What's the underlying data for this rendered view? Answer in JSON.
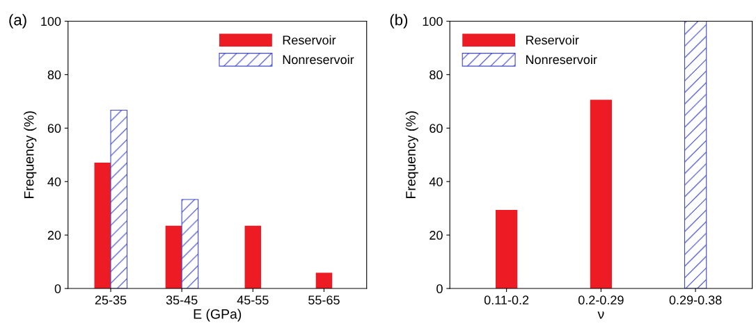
{
  "chart_data": [
    {
      "type": "bar",
      "xlabel": "E (GPa)",
      "ylabel": "Frequency (%)",
      "annotations": [
        "(a)"
      ],
      "categories": [
        "25-35",
        "35-45",
        "45-55",
        "55-65"
      ],
      "series": [
        {
          "name": "Reservoir",
          "color": "#ed1c24",
          "values": [
            47.1,
            23.5,
            23.5,
            5.9
          ]
        },
        {
          "name": "Nonreservoir",
          "color": "#3f48cc",
          "values": [
            66.7,
            33.3,
            0,
            0
          ]
        }
      ],
      "ylim": [
        0,
        100
      ],
      "yticks": [
        0,
        20,
        40,
        60,
        80,
        100
      ],
      "grid": false,
      "legend": "top right"
    },
    {
      "type": "bar",
      "xlabel": "ν",
      "ylabel": "Frequency (%)",
      "annotations": [
        "(b)"
      ],
      "categories": [
        "0.11-0.2",
        "0.2-0.29",
        "0.29-0.38"
      ],
      "series": [
        {
          "name": "Reservoir",
          "color": "#ed1c24",
          "values": [
            29.4,
            70.6,
            0
          ]
        },
        {
          "name": "Nonreservoir",
          "color": "#3f48cc",
          "values": [
            0,
            0,
            100
          ]
        }
      ],
      "ylim": [
        0,
        100
      ],
      "yticks": [
        0,
        20,
        40,
        60,
        80,
        100
      ],
      "grid": false,
      "legend": "top left"
    }
  ]
}
